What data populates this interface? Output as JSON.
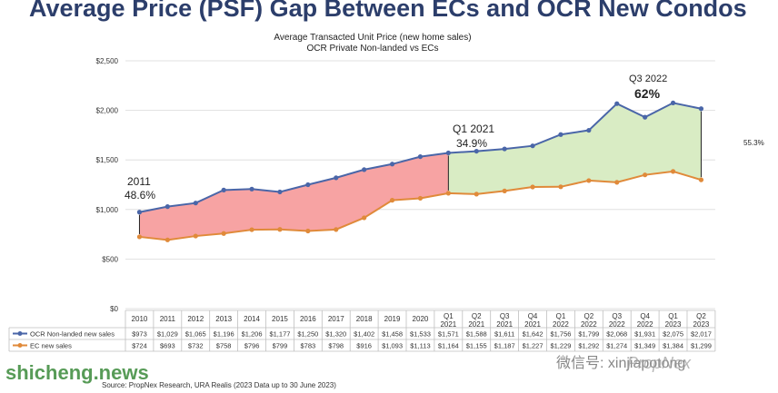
{
  "headline": "Average Price (PSF) Gap Between ECs and OCR New Condos",
  "chart_data": {
    "type": "line",
    "title": "Average Transacted Unit Price (new home sales)",
    "subtitle": "OCR Private Non-landed vs ECs",
    "y_ticks": [
      "$0",
      "$500",
      "$1,000",
      "$1,500",
      "$2,000",
      "$2,500"
    ],
    "ylim": [
      0,
      2500
    ],
    "categories": [
      "2010",
      "2011",
      "2012",
      "2013",
      "2014",
      "2015",
      "2016",
      "2017",
      "2018",
      "2019",
      "2020",
      "Q1 2021",
      "Q2 2021",
      "Q3 2021",
      "Q4 2021",
      "Q1 2022",
      "Q2 2022",
      "Q3 2022",
      "Q4 2022",
      "Q1 2023",
      "Q2 2023"
    ],
    "series": [
      {
        "name": "OCR Non-landed new sales",
        "color": "#4a66a8",
        "values": [
          973,
          1029,
          1065,
          1196,
          1206,
          1177,
          1250,
          1320,
          1402,
          1458,
          1533,
          1571,
          1588,
          1611,
          1642,
          1756,
          1799,
          2068,
          1931,
          2075,
          2017
        ],
        "labels": [
          "$973",
          "$1,029",
          "$1,065",
          "$1,196",
          "$1,206",
          "$1,177",
          "$1,250",
          "$1,320",
          "$1,402",
          "$1,458",
          "$1,533",
          "$1,571",
          "$1,588",
          "$1,611",
          "$1,642",
          "$1,756",
          "$1,799",
          "$2,068",
          "$1,931",
          "$2,075",
          "$2,017"
        ]
      },
      {
        "name": "EC new sales",
        "color": "#e08a3a",
        "values": [
          724,
          693,
          732,
          758,
          796,
          799,
          783,
          798,
          916,
          1093,
          1113,
          1164,
          1155,
          1187,
          1227,
          1229,
          1292,
          1274,
          1349,
          1384,
          1299
        ],
        "labels": [
          "$724",
          "$693",
          "$732",
          "$758",
          "$796",
          "$799",
          "$783",
          "$798",
          "$916",
          "$1,093",
          "$1,113",
          "$1,164",
          "$1,155",
          "$1,187",
          "$1,227",
          "$1,229",
          "$1,292",
          "$1,274",
          "$1,349",
          "$1,384",
          "$1,299"
        ]
      }
    ],
    "annotations": [
      {
        "l1": "2011",
        "l2": "48.6%"
      },
      {
        "l1": "Q1 2021",
        "l2": "34.9%"
      },
      {
        "l1": "Q3 2022",
        "l2": "62%"
      },
      {
        "l1": "55.3%",
        "l2": ""
      }
    ],
    "grid": true,
    "legend": "table-bottom"
  },
  "source": "Source: PropNex Research, URA Realis (2023 Data up to 30 June 2023)",
  "watermarks": {
    "left": "shicheng.news",
    "wechat": "微信号: xinjiapotong",
    "brand": "PropNex"
  }
}
